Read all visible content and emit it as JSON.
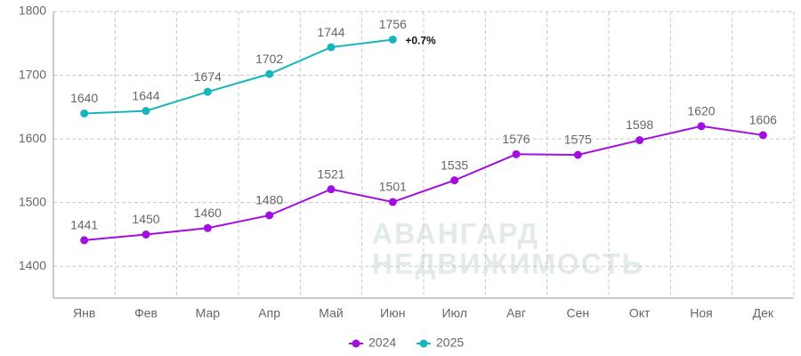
{
  "chart_data": {
    "type": "line",
    "categories": [
      "Янв",
      "Фев",
      "Мар",
      "Апр",
      "Май",
      "Июн",
      "Июл",
      "Авг",
      "Сен",
      "Окт",
      "Ноя",
      "Дек"
    ],
    "series": [
      {
        "name": "2024",
        "color": "#a20ee0",
        "values": [
          1441,
          1450,
          1460,
          1480,
          1521,
          1501,
          1535,
          1576,
          1575,
          1598,
          1620,
          1606
        ]
      },
      {
        "name": "2025",
        "color": "#19b5bd",
        "values": [
          1640,
          1644,
          1674,
          1702,
          1744,
          1756,
          null,
          null,
          null,
          null,
          null,
          null
        ]
      }
    ],
    "annotation": "+0.7%",
    "watermark": [
      "АВАНГАРД",
      "НЕДВИЖИМОСТЬ"
    ],
    "ylim": [
      1350,
      1800
    ],
    "yticks": [
      1400,
      1500,
      1600,
      1700,
      1800
    ],
    "grid": true,
    "legend": "bottom"
  }
}
